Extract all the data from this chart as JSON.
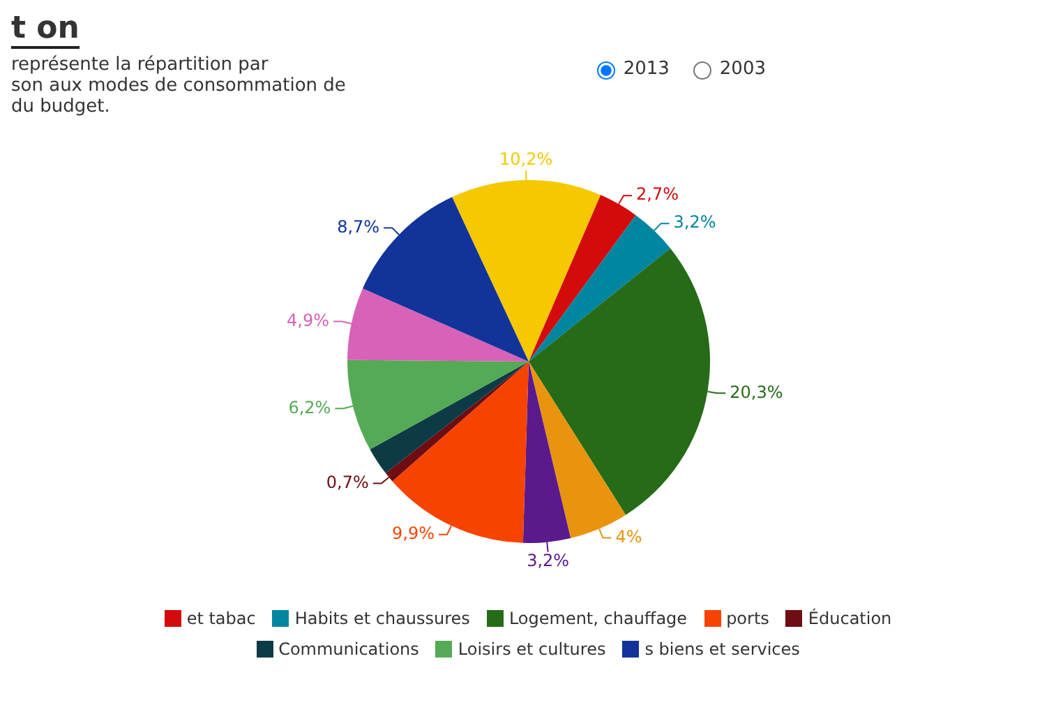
{
  "chart_data": {
    "type": "pie",
    "title": "t on",
    "subtitle": "représente la répartition par\nson aux modes de consommation de\ndu budget.",
    "annotations": [
      "2013",
      "2003"
    ],
    "categories": [
      null,
      "et tabac",
      "Habits et chaussures",
      "Logement, chauffage",
      null,
      null,
      "ports",
      "Éducation",
      "Communications",
      "Loisirs et cultures",
      null,
      "s biens et services"
    ],
    "values": [
      10.2,
      2.7,
      3.2,
      20.3,
      4,
      3.2,
      9.9,
      0.7,
      1.9,
      6.2,
      4.9,
      8.7
    ],
    "value_labels": [
      "10,2%",
      "2,7%",
      "3,2%",
      "20,3%",
      "4%",
      "3,2%",
      "9,9%",
      "0,7%",
      null,
      "6,2%",
      "4,9%",
      "8,7%"
    ],
    "colors": [
      "#f5c800",
      "#d40b0b",
      "#0086a0",
      "#266b18",
      "#e8940f",
      "#5a1a8c",
      "#f74300",
      "#6e0d12",
      "#0d3b45",
      "#55aa55",
      "#d862b8",
      "#12339a"
    ],
    "legend": "bottom"
  }
}
